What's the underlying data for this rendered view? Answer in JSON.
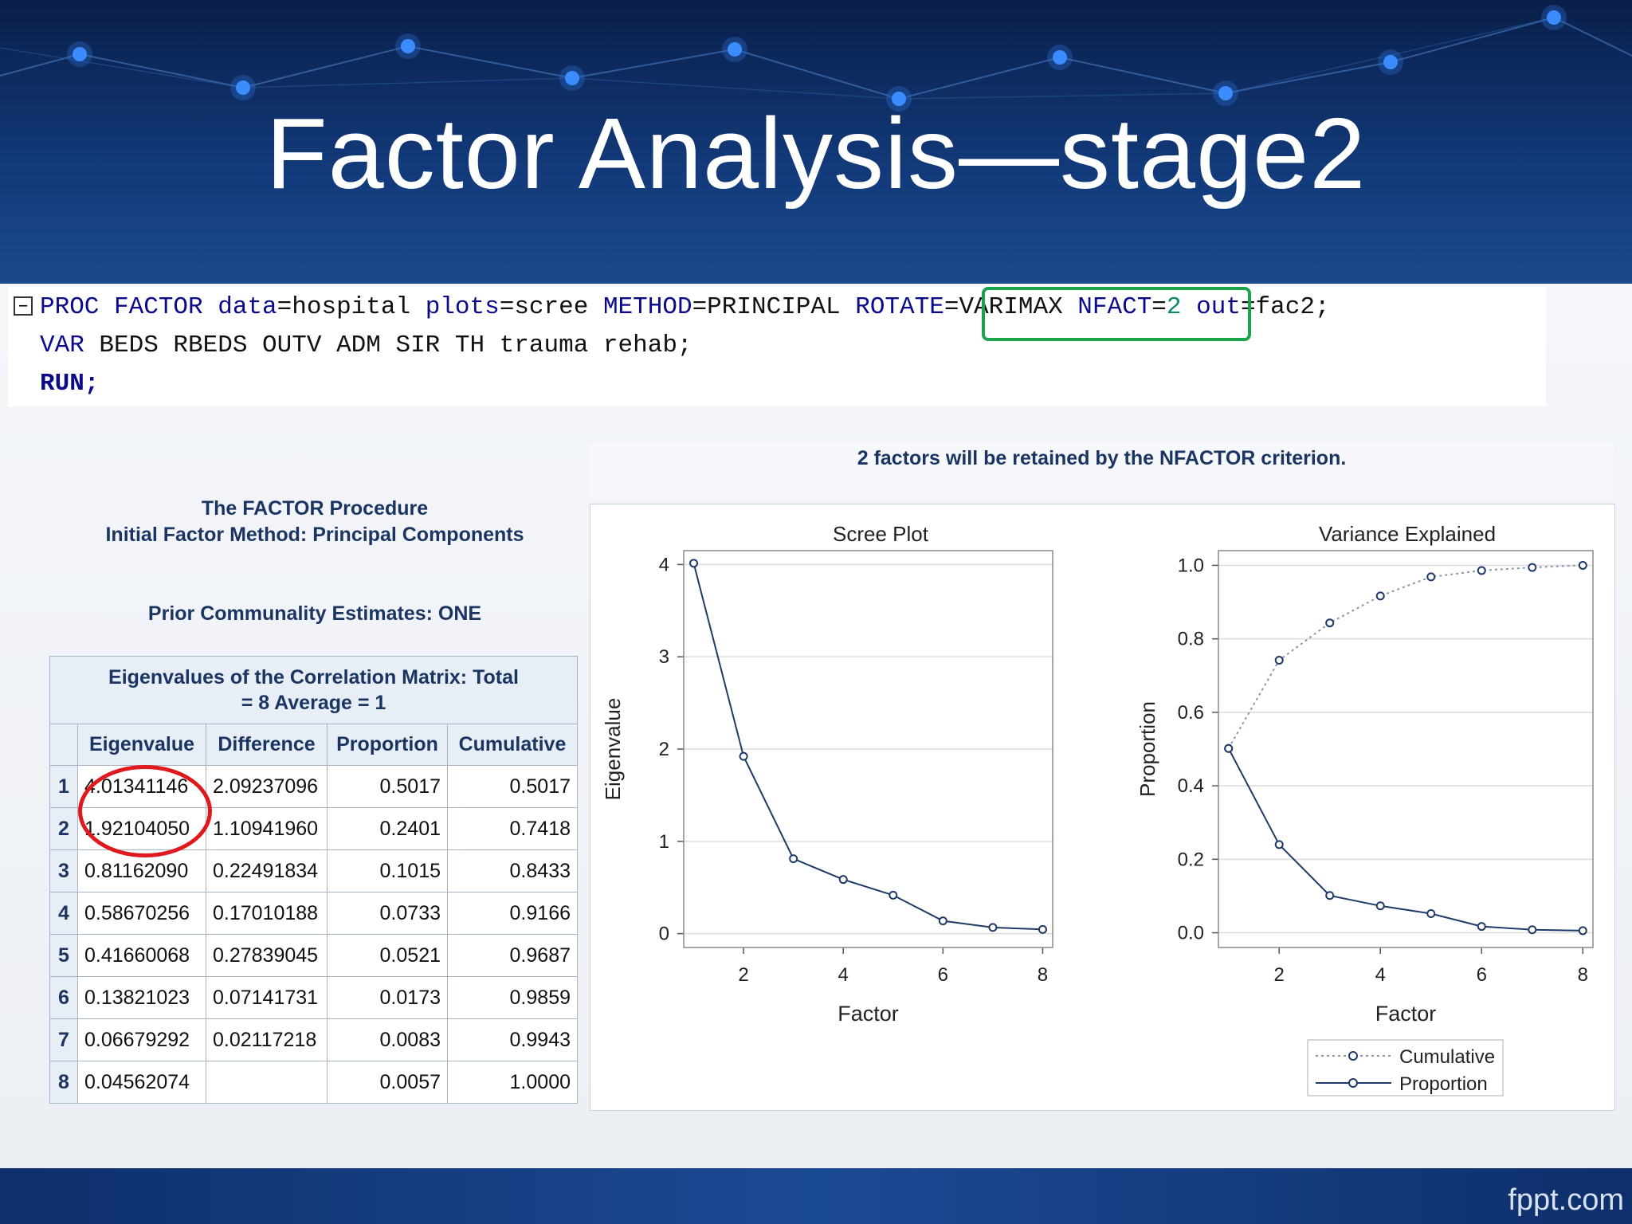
{
  "slide": {
    "title": "Factor Analysis—stage2",
    "footer_brand": "fppt.com"
  },
  "code": {
    "line1_a": "PROC FACTOR",
    "line1_b": " data",
    "line1_c": "=hospital",
    "line1_d": " plots",
    "line1_e": "=scree",
    "line1_f": " METHOD",
    "line1_g": "=PRINCIPAL ",
    "line1_h": "ROTATE",
    "line1_i": "=VARIMAX ",
    "line1_j": "NFACT",
    "line1_k": "=",
    "line1_l": "2",
    "line1_m": " out",
    "line1_n": "=fac2;",
    "line2_a": "VAR",
    "line2_b": " BEDS RBEDS OUTV ADM SIR TH trauma rehab;",
    "line3": "RUN;",
    "collapse_glyph": "−"
  },
  "factor_procedure": {
    "heading_line1": "The FACTOR Procedure",
    "heading_line2": "Initial Factor Method: Principal Components",
    "prior_estimates": "Prior Communality Estimates: ONE"
  },
  "eigen_table": {
    "caption_line1": "Eigenvalues of the Correlation Matrix: Total",
    "caption_line2": "= 8 Average = 1",
    "columns": [
      "Eigenvalue",
      "Difference",
      "Proportion",
      "Cumulative"
    ],
    "rows": [
      {
        "n": "1",
        "eigenvalue": "4.01341146",
        "difference": "2.09237096",
        "proportion": "0.5017",
        "cumulative": "0.5017"
      },
      {
        "n": "2",
        "eigenvalue": "1.92104050",
        "difference": "1.10941960",
        "proportion": "0.2401",
        "cumulative": "0.7418"
      },
      {
        "n": "3",
        "eigenvalue": "0.81162090",
        "difference": "0.22491834",
        "proportion": "0.1015",
        "cumulative": "0.8433"
      },
      {
        "n": "4",
        "eigenvalue": "0.58670256",
        "difference": "0.17010188",
        "proportion": "0.0733",
        "cumulative": "0.9166"
      },
      {
        "n": "5",
        "eigenvalue": "0.41660068",
        "difference": "0.27839045",
        "proportion": "0.0521",
        "cumulative": "0.9687"
      },
      {
        "n": "6",
        "eigenvalue": "0.13821023",
        "difference": "0.07141731",
        "proportion": "0.0173",
        "cumulative": "0.9859"
      },
      {
        "n": "7",
        "eigenvalue": "0.06679292",
        "difference": "0.02117218",
        "proportion": "0.0083",
        "cumulative": "0.9943"
      },
      {
        "n": "8",
        "eigenvalue": "0.04562074",
        "difference": "",
        "proportion": "0.0057",
        "cumulative": "1.0000"
      }
    ]
  },
  "nfactor_note": "2 factors will be retained by the NFACTOR criterion.",
  "colors": {
    "highlight_rotate": "#1aa34a",
    "highlight_eigen": "#e0191f",
    "series_line": "#1f3a68",
    "grid": "#dcdcdc"
  },
  "chart_data": [
    {
      "type": "line",
      "title": "Scree Plot",
      "xlabel": "Factor",
      "ylabel": "Eigenvalue",
      "x": [
        1,
        2,
        3,
        4,
        5,
        6,
        7,
        8
      ],
      "series": [
        {
          "values": [
            4.01341146,
            1.9210405,
            0.8116209,
            0.58670256,
            0.41660068,
            0.13821023,
            0.06679292,
            0.04562074
          ]
        }
      ],
      "xlim": [
        0.8,
        8.2
      ],
      "ylim": [
        -0.15,
        4.15
      ],
      "xticks": [
        2,
        4,
        6,
        8
      ],
      "yticks": [
        0,
        1,
        2,
        3,
        4
      ],
      "grid": "horizontal"
    },
    {
      "type": "line",
      "title": "Variance Explained",
      "xlabel": "Factor",
      "ylabel": "Proportion",
      "x": [
        1,
        2,
        3,
        4,
        5,
        6,
        7,
        8
      ],
      "series": [
        {
          "name": "Cumulative",
          "style": "dotted",
          "values": [
            0.5017,
            0.7418,
            0.8433,
            0.9166,
            0.9687,
            0.9859,
            0.9943,
            1.0
          ]
        },
        {
          "name": "Proportion",
          "style": "solid",
          "values": [
            0.5017,
            0.2401,
            0.1015,
            0.0733,
            0.0521,
            0.0173,
            0.0083,
            0.0057
          ]
        }
      ],
      "xlim": [
        0.8,
        8.2
      ],
      "ylim": [
        -0.04,
        1.04
      ],
      "xticks": [
        2,
        4,
        6,
        8
      ],
      "yticks": [
        0.0,
        0.2,
        0.4,
        0.6,
        0.8,
        1.0
      ],
      "ytick_labels": [
        "0.0",
        "0.2",
        "0.4",
        "0.6",
        "0.8",
        "1.0"
      ],
      "grid": "horizontal",
      "legend": "bottom"
    }
  ]
}
